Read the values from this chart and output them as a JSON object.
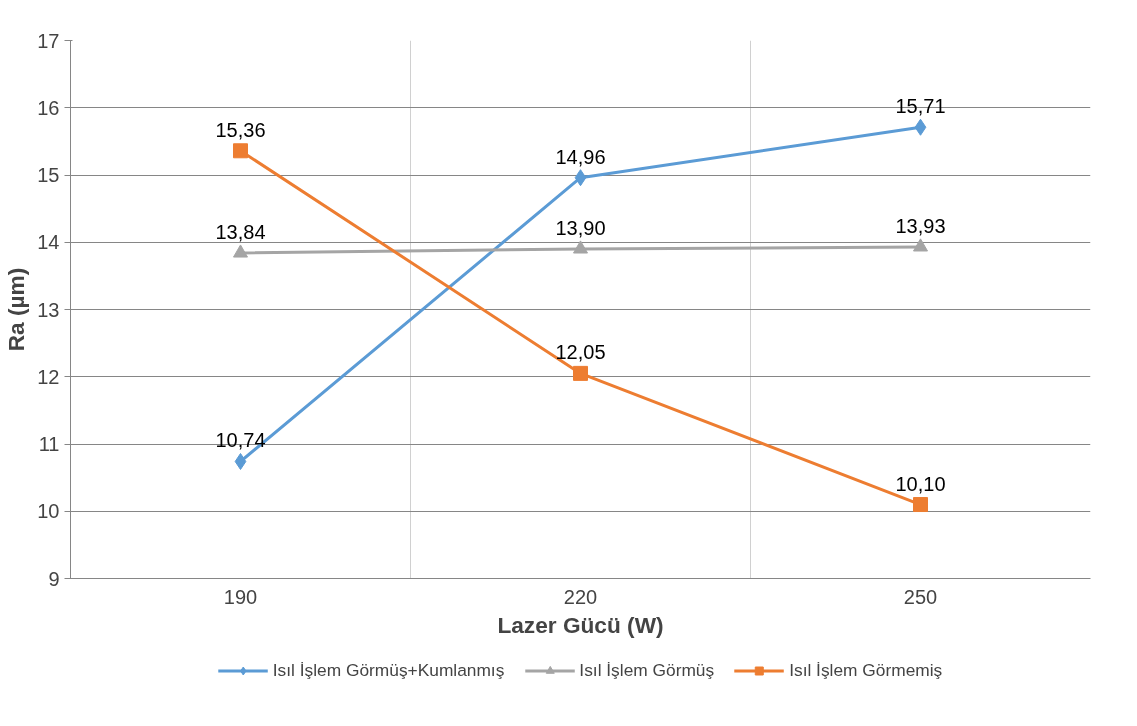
{
  "chart_data": {
    "type": "line",
    "xlabel": "Lazer Gücü (W)",
    "ylabel": "Ra (µm)",
    "categories": [
      "190",
      "220",
      "250"
    ],
    "ylim": [
      9,
      17
    ],
    "yticks": [
      9,
      10,
      11,
      12,
      13,
      14,
      15,
      16,
      17
    ],
    "grid": true,
    "legend": "bottom",
    "line_style": "solid",
    "series": [
      {
        "name": "Isıl İşlem Görmüş+Kumlanmış",
        "color": "#5b9bd5",
        "marker": "diamond",
        "values": [
          10.74,
          14.96,
          15.71
        ],
        "value_labels": [
          "10,74",
          "14,96",
          "15,71"
        ]
      },
      {
        "name": "Isıl İşlem Görmüş",
        "color": "#a5a5a5",
        "marker": "triangle",
        "values": [
          13.84,
          13.9,
          13.93
        ],
        "value_labels": [
          "13,84",
          "13,90",
          "13,93"
        ]
      },
      {
        "name": "Isıl İşlem Görmemiş",
        "color": "#ed7d31",
        "marker": "square",
        "values": [
          15.36,
          12.05,
          10.1
        ],
        "value_labels": [
          "15,36",
          "12,05",
          "10,10"
        ]
      }
    ]
  }
}
